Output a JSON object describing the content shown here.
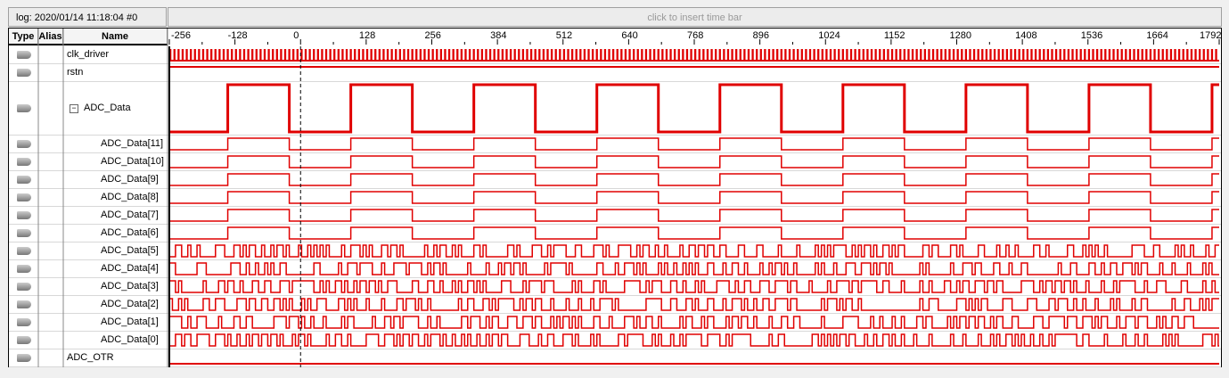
{
  "header": {
    "log_label": "log: 2020/01/14 11:18:04  #0",
    "time_bar_hint": "click to insert time bar"
  },
  "columns": {
    "type": "Type",
    "alias": "Alias",
    "name": "Name"
  },
  "time_axis": {
    "ticks": [
      "-256",
      "-128",
      "0",
      "128",
      "256",
      "384",
      "512",
      "640",
      "768",
      "896",
      "1024",
      "1152",
      "1280",
      "1408",
      "1536",
      "1664",
      "1792"
    ],
    "cursor": 0,
    "range": [
      -256,
      1792
    ]
  },
  "colors": {
    "wave": "#e00000",
    "cursor": "#000000"
  },
  "signals": [
    {
      "name": "clk_driver",
      "type": "output-icon",
      "kind": "clock"
    },
    {
      "name": "rstn",
      "type": "input-icon",
      "kind": "high"
    },
    {
      "name": "ADC_Data",
      "type": "bus-icon",
      "kind": "bus",
      "expanded": true
    },
    {
      "name": "ADC_Data[11]",
      "type": "output-icon",
      "kind": "bit",
      "bit": 11
    },
    {
      "name": "ADC_Data[10]",
      "type": "output-icon",
      "kind": "bit",
      "bit": 10
    },
    {
      "name": "ADC_Data[9]",
      "type": "output-icon",
      "kind": "bit",
      "bit": 9
    },
    {
      "name": "ADC_Data[8]",
      "type": "output-icon",
      "kind": "bit",
      "bit": 8
    },
    {
      "name": "ADC_Data[7]",
      "type": "output-icon",
      "kind": "bit",
      "bit": 7
    },
    {
      "name": "ADC_Data[6]",
      "type": "output-icon",
      "kind": "bit",
      "bit": 6
    },
    {
      "name": "ADC_Data[5]",
      "type": "output-icon",
      "kind": "bit",
      "bit": 5
    },
    {
      "name": "ADC_Data[4]",
      "type": "output-icon",
      "kind": "bit",
      "bit": 4
    },
    {
      "name": "ADC_Data[3]",
      "type": "output-icon",
      "kind": "bit",
      "bit": 3
    },
    {
      "name": "ADC_Data[2]",
      "type": "output-icon",
      "kind": "bit",
      "bit": 2
    },
    {
      "name": "ADC_Data[1]",
      "type": "output-icon",
      "kind": "bit",
      "bit": 1
    },
    {
      "name": "ADC_Data[0]",
      "type": "output-icon",
      "kind": "bit",
      "bit": 0
    },
    {
      "name": "ADC_OTR",
      "type": "output-icon",
      "kind": "low"
    }
  ]
}
